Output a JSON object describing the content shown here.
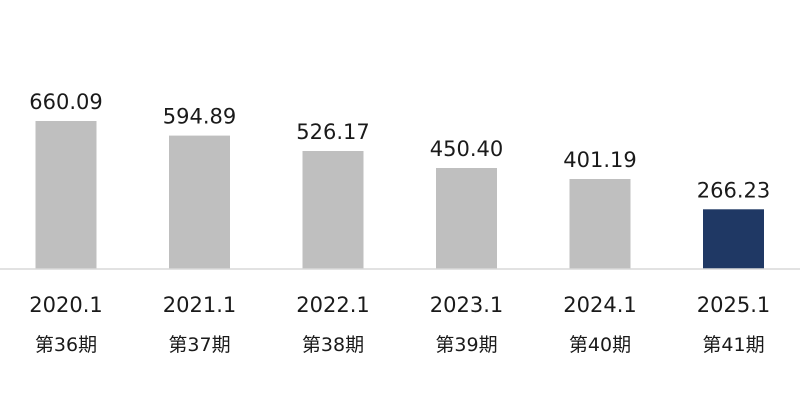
{
  "chart_data": {
    "type": "bar",
    "categories": [
      "2020.1",
      "2021.1",
      "2022.1",
      "2023.1",
      "2024.1",
      "2025.1"
    ],
    "sub_categories": [
      "第36期",
      "第37期",
      "第38期",
      "第39期",
      "第40期",
      "第41期"
    ],
    "values": [
      660.09,
      594.89,
      526.17,
      450.4,
      401.19,
      266.23
    ],
    "value_labels": [
      "660.09",
      "594.89",
      "526.17",
      "450.40",
      "401.19",
      "266.23"
    ],
    "ylim": [
      0,
      700
    ],
    "grid": false,
    "legend": "none",
    "colors": {
      "default_bar": "#bfbfbf",
      "highlight_bar": "#1f3864",
      "axis_line": "#d9d9d9",
      "text": "#1a1a1a"
    },
    "highlight_index": 5
  }
}
